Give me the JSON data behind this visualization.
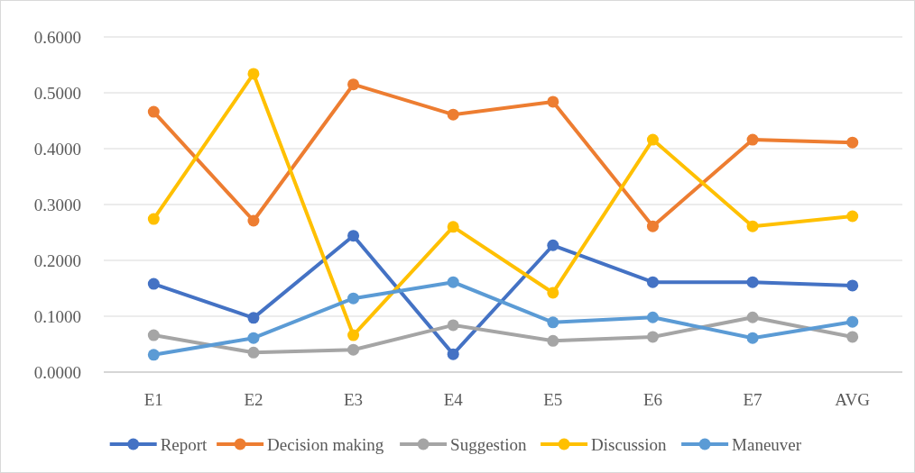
{
  "chart_data": {
    "type": "line",
    "categories": [
      "E1",
      "E2",
      "E3",
      "E4",
      "E5",
      "E6",
      "E7",
      "AVG"
    ],
    "series": [
      {
        "name": "Report",
        "color": "#4472c4",
        "values": [
          0.158,
          0.097,
          0.244,
          0.032,
          0.227,
          0.161,
          0.161,
          0.155
        ]
      },
      {
        "name": "Decision making",
        "color": "#ed7d31",
        "values": [
          0.466,
          0.271,
          0.515,
          0.461,
          0.484,
          0.261,
          0.416,
          0.411
        ]
      },
      {
        "name": "Suggestion",
        "color": "#a5a5a5",
        "values": [
          0.066,
          0.035,
          0.04,
          0.084,
          0.056,
          0.063,
          0.098,
          0.063
        ]
      },
      {
        "name": "Discussion",
        "color": "#ffc000",
        "values": [
          0.274,
          0.534,
          0.066,
          0.26,
          0.142,
          0.416,
          0.261,
          0.279
        ]
      },
      {
        "name": "Maneuver",
        "color": "#5b9bd5",
        "values": [
          0.031,
          0.061,
          0.132,
          0.161,
          0.089,
          0.098,
          0.061,
          0.09
        ]
      }
    ],
    "ylim": [
      0,
      0.6
    ],
    "yticks": [
      {
        "value": 0,
        "label": "0.0000"
      },
      {
        "value": 0.1,
        "label": "0.1000"
      },
      {
        "value": 0.2,
        "label": "0.2000"
      },
      {
        "value": 0.3,
        "label": "0.3000"
      },
      {
        "value": 0.4,
        "label": "0.4000"
      },
      {
        "value": 0.5,
        "label": "0.5000"
      },
      {
        "value": 0.6,
        "label": "0.6000"
      }
    ],
    "grid": "y",
    "legend": "bottom",
    "marker": "circle",
    "line_style": "solid"
  }
}
